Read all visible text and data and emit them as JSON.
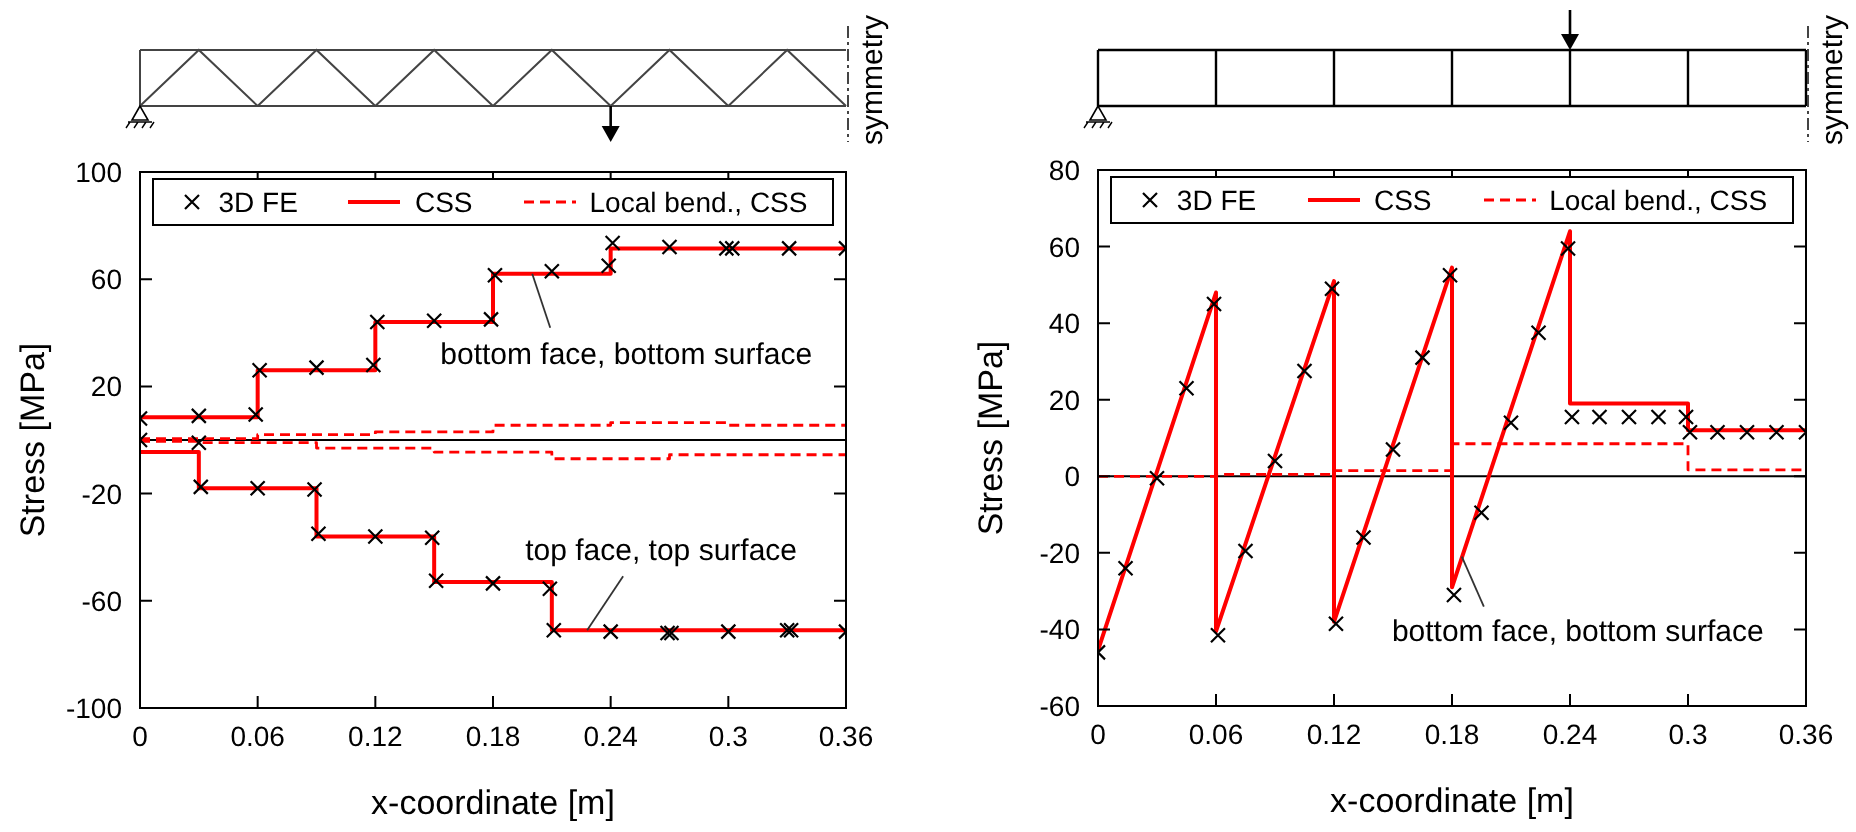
{
  "chart_data": [
    {
      "type": "line",
      "xlabel": "x-coordinate [m]",
      "ylabel": "Stress [MPa]",
      "xlim": [
        0,
        0.36
      ],
      "xticks": [
        0,
        0.06,
        0.12,
        0.18,
        0.24,
        0.3,
        0.36
      ],
      "ylim": [
        -100,
        100
      ],
      "yticks": [
        -100,
        -60,
        -20,
        20,
        60,
        100
      ],
      "legend": "top",
      "ref_lines": [
        {
          "axis": "y",
          "value": 0,
          "color": "#000000"
        }
      ],
      "annotations": [
        {
          "text": "bottom face, bottom surface",
          "x": 0.2,
          "y": 62
        },
        {
          "text": "top face, top surface",
          "x": 0.228,
          "y": -71
        },
        "symmetry"
      ],
      "series": [
        {
          "name": "3D FE",
          "type": "scatter",
          "color": "#000000",
          "marker": "cross",
          "x": [
            0,
            0.03,
            0.059,
            0.061,
            0.09,
            0.119,
            0.121,
            0.15,
            0.179,
            0.181,
            0.21,
            0.239,
            0.241,
            0.27,
            0.299,
            0.302,
            0.331,
            0.36,
            0,
            0.03,
            0.031,
            0.06,
            0.089,
            0.091,
            0.12,
            0.149,
            0.151,
            0.18,
            0.209,
            0.211,
            0.24,
            0.269,
            0.271,
            0.3,
            0.33,
            0.332,
            0.36
          ],
          "values": [
            8,
            9,
            9.5,
            26,
            27,
            28,
            44,
            44.5,
            45,
            61.5,
            63,
            65,
            73.5,
            72,
            71.5,
            71.5,
            71.5,
            71.5,
            0,
            -1,
            -17.5,
            -18,
            -18.5,
            -35,
            -36,
            -36.5,
            -52.5,
            -53.5,
            -55.5,
            -71,
            -71.5,
            -72,
            -72,
            -71.5,
            -71,
            -71,
            -71.5
          ]
        },
        {
          "name": "CSS",
          "type": "step",
          "color": "#ff0000",
          "line_style": "solid",
          "marker": "none",
          "x": [
            0,
            0.06,
            0.12,
            0.18,
            0.24,
            0.36
          ],
          "values": [
            8.5,
            26,
            44,
            62,
            71.5,
            71.5
          ]
        },
        {
          "type": "step",
          "color": "#ff0000",
          "line_style": "solid",
          "marker": "none",
          "x": [
            0,
            0.03,
            0.09,
            0.15,
            0.21,
            0.36
          ],
          "values": [
            -4.5,
            -18,
            -36,
            -53,
            -71,
            -71
          ]
        },
        {
          "name": "Local bend., CSS",
          "type": "step",
          "color": "#ff0000",
          "line_style": "dashed",
          "marker": "none",
          "x": [
            0,
            0.06,
            0.12,
            0.18,
            0.24,
            0.3,
            0.36
          ],
          "values": [
            0.5,
            2,
            3,
            5.5,
            6.5,
            5.5,
            5.5
          ]
        },
        {
          "type": "step",
          "color": "#ff0000",
          "line_style": "dashed",
          "marker": "none",
          "x": [
            0,
            0.03,
            0.09,
            0.15,
            0.21,
            0.27,
            0.36
          ],
          "values": [
            -0.5,
            -1,
            -3,
            -4.5,
            -7,
            -5.5,
            -5.5
          ]
        }
      ]
    },
    {
      "type": "line",
      "xlabel": "x-coordinate [m]",
      "ylabel": "Stress [MPa]",
      "xlim": [
        0,
        0.36
      ],
      "xticks": [
        0,
        0.06,
        0.12,
        0.18,
        0.24,
        0.3,
        0.36
      ],
      "ylim": [
        -60,
        80
      ],
      "yticks": [
        -60,
        -40,
        -20,
        0,
        20,
        40,
        60,
        80
      ],
      "legend": "top",
      "ref_lines": [
        {
          "axis": "y",
          "value": 0,
          "color": "#000000"
        }
      ],
      "annotations": [
        {
          "text": "bottom face, bottom surface",
          "x": 0.185,
          "y": -21
        },
        "symmetry"
      ],
      "series": [
        {
          "name": "3D FE",
          "type": "scatter",
          "color": "#000000",
          "marker": "cross",
          "x": [
            0,
            0.014,
            0.03,
            0.045,
            0.059,
            0.061,
            0.075,
            0.09,
            0.105,
            0.119,
            0.121,
            0.135,
            0.15,
            0.165,
            0.179,
            0.181,
            0.195,
            0.21,
            0.224,
            0.239,
            0.241,
            0.255,
            0.27,
            0.285,
            0.299,
            0.301,
            0.315,
            0.33,
            0.345,
            0.36
          ],
          "values": [
            -46,
            -24,
            -0.5,
            23,
            45,
            -41.5,
            -19.5,
            4,
            27.5,
            49,
            -38.5,
            -16,
            7,
            31,
            52.5,
            -31,
            -9.5,
            14,
            37.5,
            59.5,
            15.5,
            15.5,
            15.5,
            15.5,
            15.5,
            11.5,
            11.5,
            11.5,
            11.5,
            11.5
          ]
        },
        {
          "name": "CSS",
          "type": "line",
          "color": "#ff0000",
          "line_style": "solid",
          "marker": "none",
          "x": [
            0,
            0.06,
            0.06,
            0.12,
            0.12,
            0.18,
            0.18,
            0.24,
            0.24,
            0.3,
            0.3,
            0.36
          ],
          "values": [
            -45.5,
            48,
            -40.5,
            51,
            -38,
            54.5,
            -29,
            64,
            19,
            19,
            12,
            12
          ]
        },
        {
          "name": "Local bend., CSS",
          "type": "step",
          "color": "#ff0000",
          "line_style": "dashed",
          "marker": "none",
          "x": [
            0,
            0.06,
            0.12,
            0.18,
            0.3,
            0.36
          ],
          "values": [
            0,
            0.5,
            1.5,
            8.5,
            1.7,
            1.7
          ]
        }
      ]
    }
  ]
}
